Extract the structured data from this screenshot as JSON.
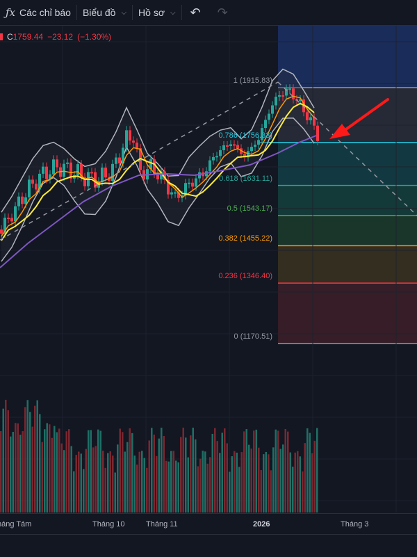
{
  "toolbar": {
    "indicators_label": "Các chỉ báo",
    "chart_label": "Biểu đồ",
    "profile_label": "Hồ sơ"
  },
  "legend": {
    "close_prefix": "C",
    "close_value": "1759.44",
    "change": "−23.12",
    "change_pct": "(−1.30%)"
  },
  "fib_levels": [
    {
      "label": "1 (1915.83)",
      "value": 1915.83,
      "color": "#9598a1"
    },
    {
      "label": "0.786 (1756.33)",
      "value": 1756.33,
      "color": "#22c6dc"
    },
    {
      "label": "0.618 (1631.11)",
      "value": 1631.11,
      "color": "#26a69a"
    },
    {
      "label": "0.5 (1543.17)",
      "value": 1543.17,
      "color": "#4caf50"
    },
    {
      "label": "0.382 (1455.22)",
      "value": 1455.22,
      "color": "#ff9800"
    },
    {
      "label": "0.236 (1346.40)",
      "value": 1346.4,
      "color": "#f23645"
    },
    {
      "label": "0 (1170.51)",
      "value": 1170.51,
      "color": "#9598a1"
    }
  ],
  "time_axis": [
    "háng Tám",
    "Tháng 10",
    "Tháng 11",
    "2026",
    "Tháng 3"
  ],
  "colors": {
    "up": "#26a69a",
    "down": "#f23645",
    "ma_short": "#ff9800",
    "ma_mid": "#ffeb3b",
    "ma_long": "#7e57c2",
    "arrow": "#ff1a1a"
  }
}
